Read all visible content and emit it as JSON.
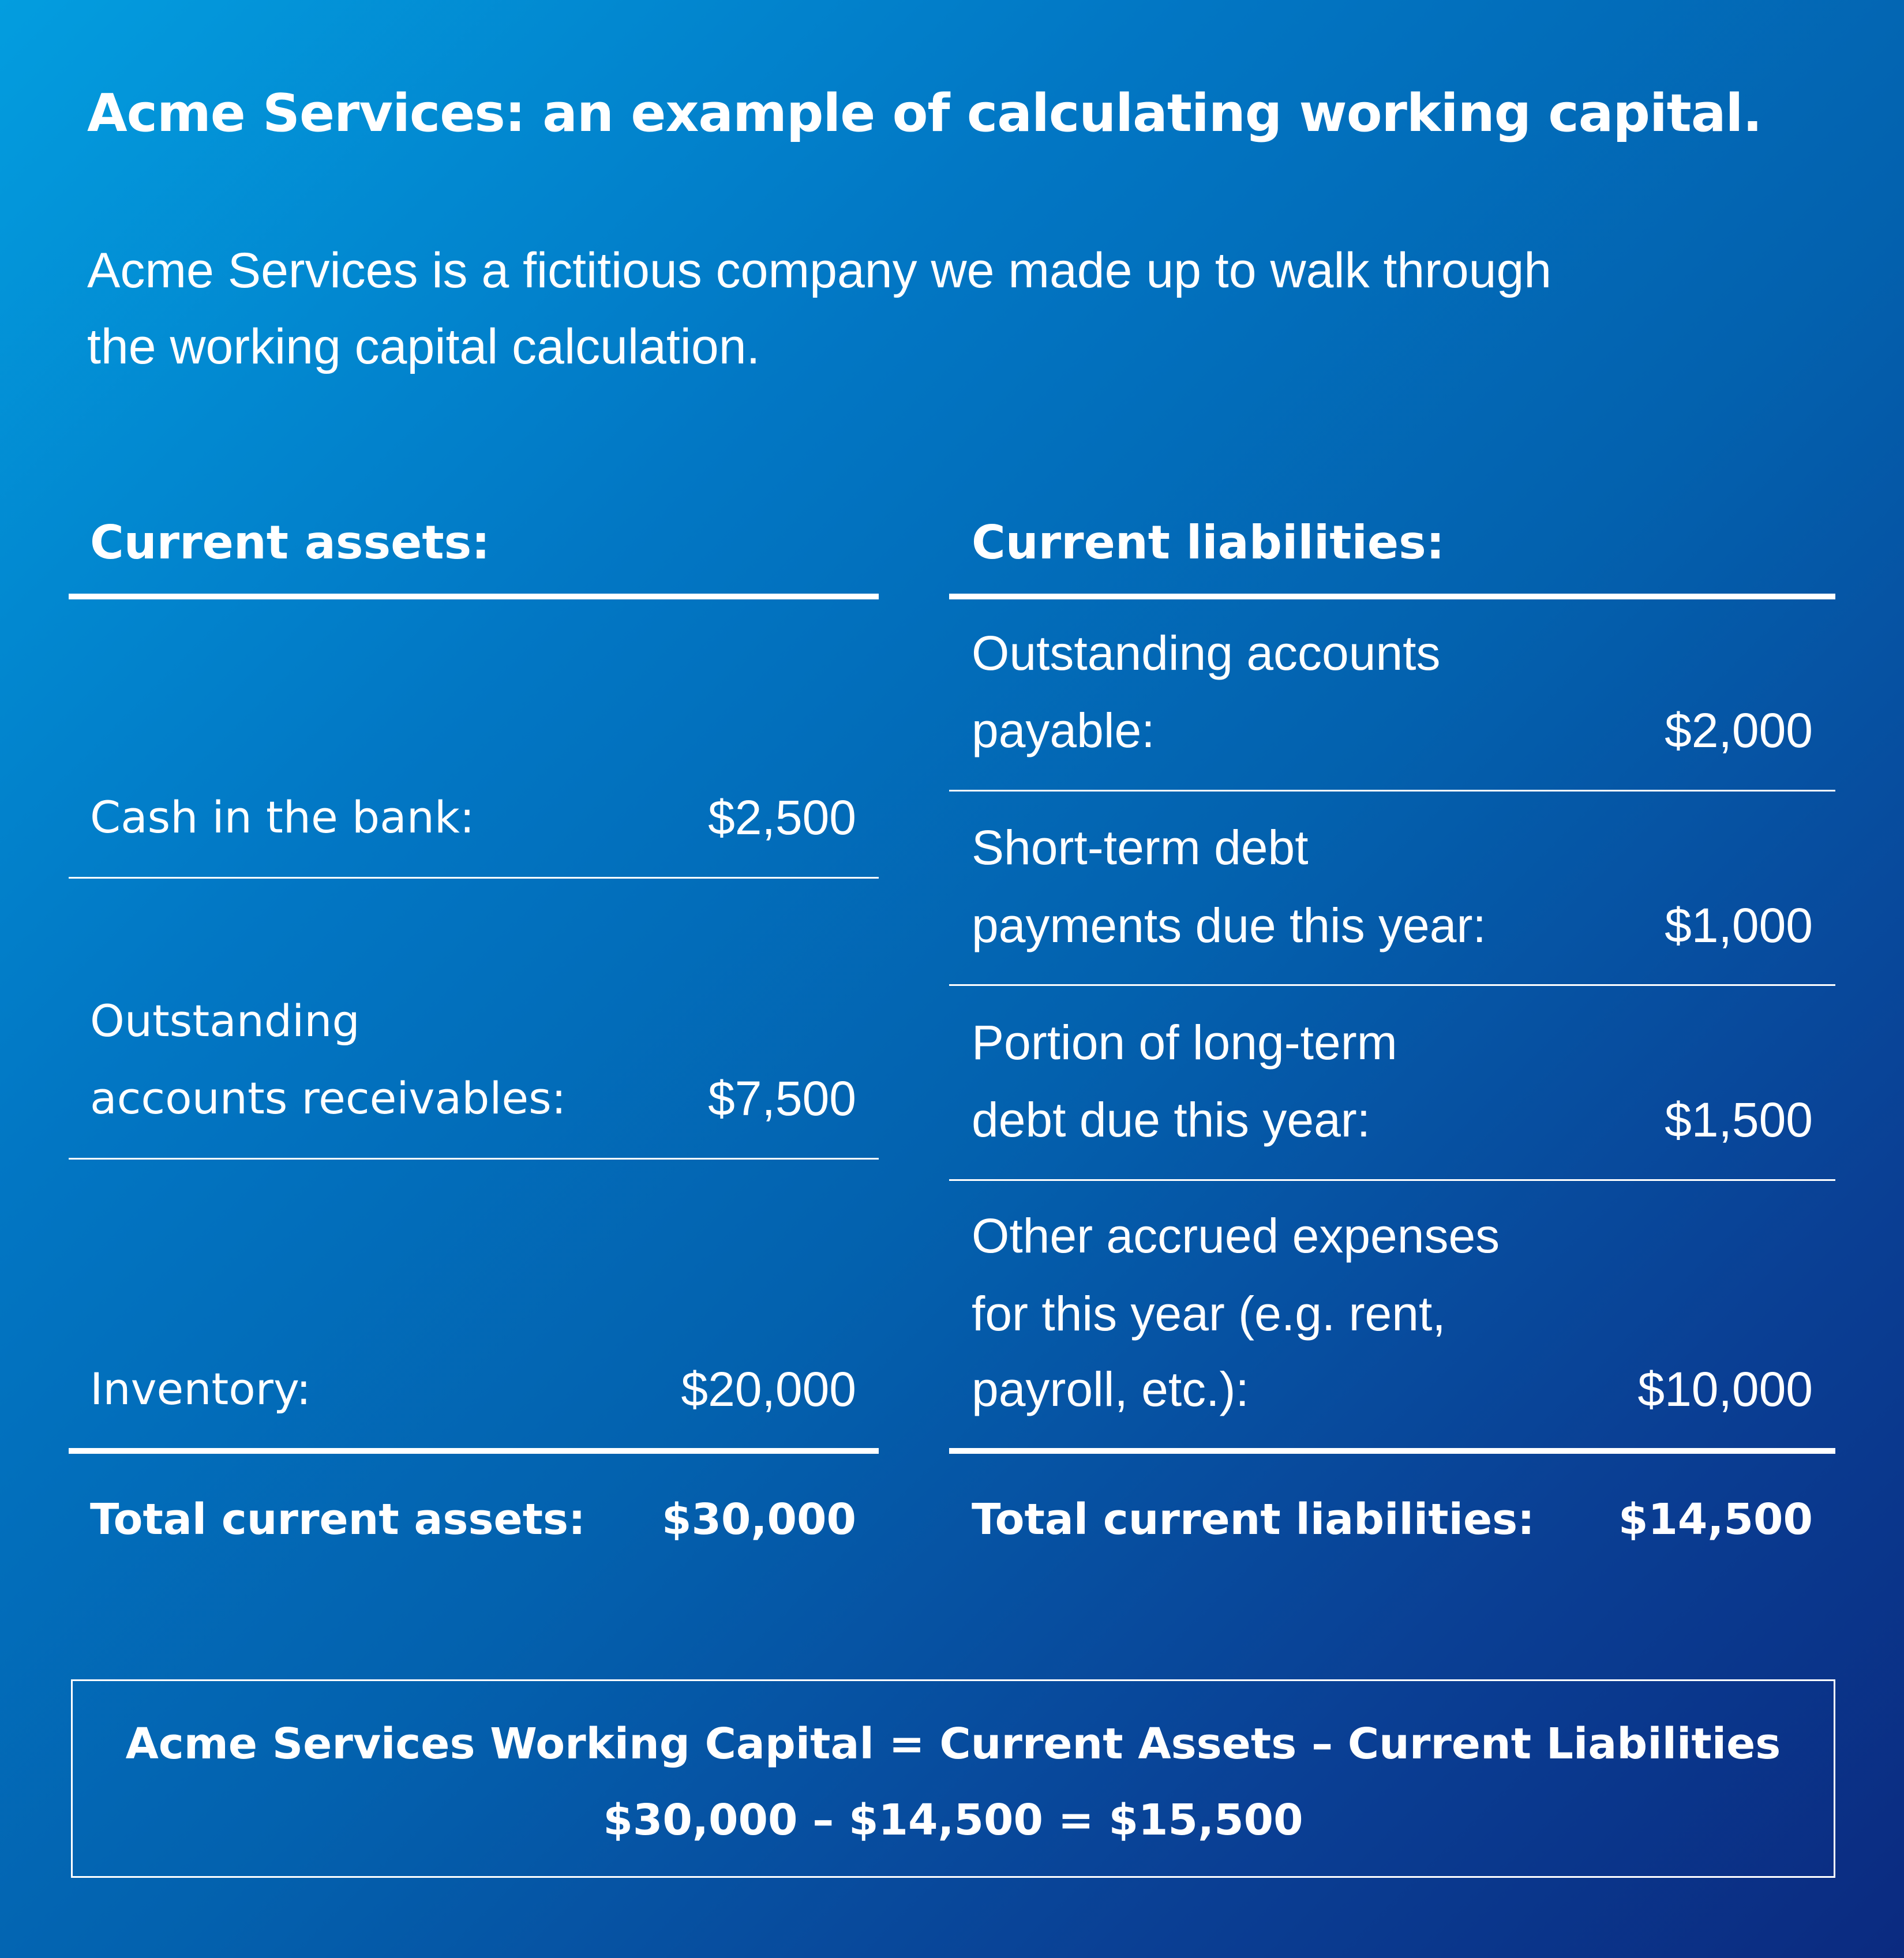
{
  "title": "Acme Services: an example of calculating working capital.",
  "subtitle": [
    "Acme Services is a fictitious company we made up to walk through",
    "the working capital calculation."
  ],
  "assets": {
    "header": "Current assets:",
    "items": [
      {
        "label": [
          "Cash in the bank:"
        ],
        "value": "$2,500"
      },
      {
        "label": [
          "Outstanding",
          "accounts receivables:"
        ],
        "value": "$7,500"
      },
      {
        "label": [
          "Inventory:"
        ],
        "value": "$20,000"
      }
    ],
    "total_label": "Total current assets:",
    "total_value": "$30,000"
  },
  "liabilities": {
    "header": "Current liabilities:",
    "items": [
      {
        "label": [
          "Outstanding accounts",
          "payable:"
        ],
        "value": "$2,000"
      },
      {
        "label": [
          "Short-term debt",
          "payments due this year:"
        ],
        "value": "$1,000"
      },
      {
        "label": [
          "Portion of long-term",
          "debt due this year:"
        ],
        "value": "$1,500"
      },
      {
        "label": [
          "Other accrued expenses",
          "for this year (e.g. rent,",
          "payroll, etc.):"
        ],
        "value": "$10,000"
      }
    ],
    "total_label": "Total current liabilities:",
    "total_value": "$14,500"
  },
  "formula": {
    "line1": "Acme Services Working Capital = Current Assets – Current Liabilities",
    "line2": "$30,000 – $14,500 = $15,500"
  },
  "colors": {
    "gradient_start": "#039ddf",
    "gradient_end": "#0b2a80",
    "text": "#ffffff"
  }
}
